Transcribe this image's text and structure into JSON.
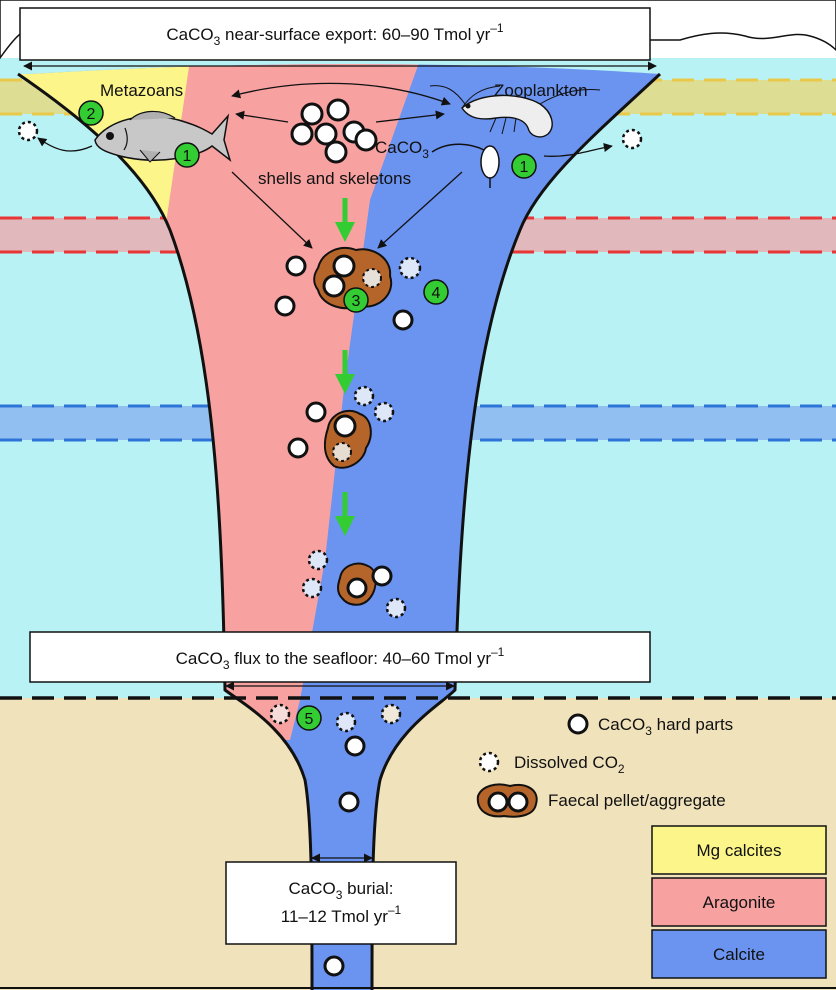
{
  "flux_boxes": {
    "surface_export": {
      "prefix": "CaCO",
      "sub": "3",
      "text": " near-surface export: 60–90 Tmol yr",
      "sup": "–1"
    },
    "seafloor_flux": {
      "prefix": "CaCO",
      "sub": "3",
      "text": " flux to the seafloor: 40–60 Tmol yr",
      "sup": "–1"
    },
    "burial": {
      "prefix": "CaCO",
      "sub": "3",
      "text": " burial:",
      "line2": "11–12 Tmol yr",
      "sup": "–1"
    }
  },
  "labels": {
    "metazoans": "Metazoans",
    "zooplankton": "Zooplankton",
    "caco3_prefix": "CaCO",
    "caco3_sub": "3",
    "shells": "shells and skeletons"
  },
  "process_numbers": [
    "1",
    "2",
    "3",
    "4",
    "5"
  ],
  "legend": {
    "hard_parts": {
      "prefix": "CaCO",
      "sub": "3",
      "text": " hard parts"
    },
    "dissolved": {
      "prefix": "Dissolved CO",
      "sub": "2"
    },
    "pellet": "Faecal pellet/aggregate",
    "minerals": [
      {
        "label": "Mg calcites",
        "color": "#fbf58a"
      },
      {
        "label": "Aragonite",
        "color": "#f7a1a1"
      },
      {
        "label": "Calcite",
        "color": "#6b93f0"
      }
    ]
  },
  "colors": {
    "ocean": "#b8f2f4",
    "sediment": "#f0e2bb",
    "mg_calcite": "#fbf58a",
    "aragonite": "#f7a1a1",
    "calcite": "#6b93f0",
    "process_circle": "#33cc33",
    "pellet": "#b5652a",
    "mg_band": "#e6d77a",
    "aragonite_band": "#e84a4a",
    "calcite_band": "#4e86e6",
    "seafloor_line": "#111111"
  }
}
